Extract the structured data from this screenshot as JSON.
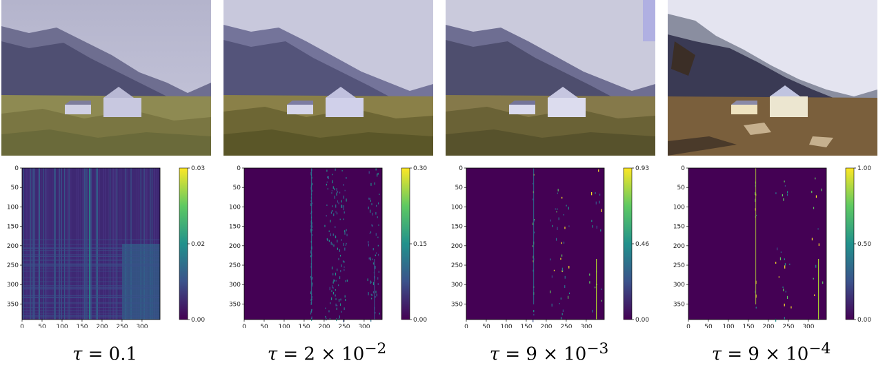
{
  "figure": {
    "panels": [
      {
        "tau_symbol": "τ",
        "tau_value": "= 0.1",
        "tau_exp": ""
      },
      {
        "tau_symbol": "τ",
        "tau_value": "= 2 × 10",
        "tau_exp": "−2"
      },
      {
        "tau_symbol": "τ",
        "tau_value": "= 9 × 10",
        "tau_exp": "−3"
      },
      {
        "tau_symbol": "τ",
        "tau_value": "= 9 × 10",
        "tau_exp": "−4"
      }
    ]
  },
  "chart_data": [
    {
      "type": "heatmap",
      "x_ticks": [
        "0",
        "50",
        "100",
        "150",
        "200",
        "250",
        "300"
      ],
      "y_ticks": [
        "0",
        "50",
        "100",
        "150",
        "200",
        "250",
        "300",
        "350"
      ],
      "xlim": [
        0,
        345
      ],
      "ylim": [
        0,
        390
      ],
      "colorbar_ticks": [
        "0.03",
        "0.02",
        "0.00"
      ],
      "colorbar_range": [
        0,
        0.03
      ],
      "colormap": "viridis"
    },
    {
      "type": "heatmap",
      "x_ticks": [
        "0",
        "50",
        "100",
        "150",
        "200",
        "250",
        "300"
      ],
      "y_ticks": [
        "0",
        "50",
        "100",
        "150",
        "200",
        "250",
        "300",
        "350"
      ],
      "xlim": [
        0,
        345
      ],
      "ylim": [
        0,
        390
      ],
      "colorbar_ticks": [
        "0.30",
        "0.15",
        "0.00"
      ],
      "colorbar_range": [
        0,
        0.3
      ],
      "colormap": "viridis"
    },
    {
      "type": "heatmap",
      "x_ticks": [
        "0",
        "50",
        "100",
        "150",
        "200",
        "250",
        "300"
      ],
      "y_ticks": [
        "0",
        "50",
        "100",
        "150",
        "200",
        "250",
        "300",
        "350"
      ],
      "xlim": [
        0,
        345
      ],
      "ylim": [
        0,
        390
      ],
      "colorbar_ticks": [
        "0.93",
        "0.46",
        "0.00"
      ],
      "colorbar_range": [
        0,
        0.93
      ],
      "colormap": "viridis"
    },
    {
      "type": "heatmap",
      "x_ticks": [
        "0",
        "50",
        "100",
        "150",
        "200",
        "250",
        "300"
      ],
      "y_ticks": [
        "0",
        "50",
        "100",
        "150",
        "200",
        "250",
        "300",
        "350"
      ],
      "xlim": [
        0,
        345
      ],
      "ylim": [
        0,
        390
      ],
      "colorbar_ticks": [
        "1.00",
        "0.50",
        "0.00"
      ],
      "colorbar_range": [
        0,
        1.0
      ],
      "colormap": "viridis"
    }
  ],
  "colors": {
    "heat_bg": "#440154",
    "heat_mid": "#3b528b",
    "heat_teal": "#21918c",
    "heat_yellow": "#fde725"
  }
}
